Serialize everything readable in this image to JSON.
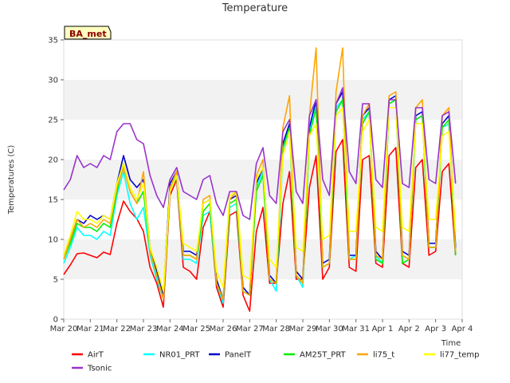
{
  "chart_data": {
    "type": "line",
    "title": "Temperature",
    "xlabel": "Time",
    "ylabel": "Temperatures (C)",
    "badge": "BA_met",
    "ylim": [
      0,
      35
    ],
    "yticks": [
      0,
      5,
      10,
      15,
      20,
      25,
      30,
      35
    ],
    "xlim": [
      "2024-03-20",
      "2024-04-04"
    ],
    "xticks": [
      {
        "date": "2024-03-20",
        "label": "Mar 20"
      },
      {
        "date": "2024-03-21",
        "label": "Mar 21"
      },
      {
        "date": "2024-03-22",
        "label": "Mar 22"
      },
      {
        "date": "2024-03-23",
        "label": "Mar 23"
      },
      {
        "date": "2024-03-24",
        "label": "Mar 24"
      },
      {
        "date": "2024-03-25",
        "label": "Mar 25"
      },
      {
        "date": "2024-03-26",
        "label": "Mar 26"
      },
      {
        "date": "2024-03-27",
        "label": "Mar 27"
      },
      {
        "date": "2024-03-28",
        "label": "Mar 28"
      },
      {
        "date": "2024-03-29",
        "label": "Mar 29"
      },
      {
        "date": "2024-03-30",
        "label": "Mar 30"
      },
      {
        "date": "2024-03-31",
        "label": "Mar 31"
      },
      {
        "date": "2024-04-01",
        "label": "Apr 1"
      },
      {
        "date": "2024-04-02",
        "label": "Apr 2"
      },
      {
        "date": "2024-04-03",
        "label": "Apr 3"
      },
      {
        "date": "2024-04-04",
        "label": "Apr 4"
      }
    ],
    "grid": "horizontal bands",
    "legend_position": "bottom",
    "x": [
      "2024-03-20 00:00",
      "2024-03-20 06:00",
      "2024-03-20 12:00",
      "2024-03-20 18:00",
      "2024-03-21 00:00",
      "2024-03-21 06:00",
      "2024-03-21 12:00",
      "2024-03-21 18:00",
      "2024-03-22 00:00",
      "2024-03-22 06:00",
      "2024-03-22 12:00",
      "2024-03-22 18:00",
      "2024-03-23 00:00",
      "2024-03-23 06:00",
      "2024-03-23 12:00",
      "2024-03-23 18:00",
      "2024-03-24 00:00",
      "2024-03-24 06:00",
      "2024-03-24 12:00",
      "2024-03-24 18:00",
      "2024-03-25 00:00",
      "2024-03-25 06:00",
      "2024-03-25 12:00",
      "2024-03-25 18:00",
      "2024-03-26 00:00",
      "2024-03-26 06:00",
      "2024-03-26 12:00",
      "2024-03-26 18:00",
      "2024-03-27 00:00",
      "2024-03-27 06:00",
      "2024-03-27 12:00",
      "2024-03-27 18:00",
      "2024-03-28 00:00",
      "2024-03-28 06:00",
      "2024-03-28 12:00",
      "2024-03-28 18:00",
      "2024-03-29 00:00",
      "2024-03-29 06:00",
      "2024-03-29 12:00",
      "2024-03-29 18:00",
      "2024-03-30 00:00",
      "2024-03-30 06:00",
      "2024-03-30 12:00",
      "2024-03-30 18:00",
      "2024-03-31 00:00",
      "2024-03-31 06:00",
      "2024-03-31 12:00",
      "2024-03-31 18:00",
      "2024-04-01 00:00",
      "2024-04-01 06:00",
      "2024-04-01 12:00",
      "2024-04-01 18:00",
      "2024-04-02 00:00",
      "2024-04-02 06:00",
      "2024-04-02 12:00",
      "2024-04-02 18:00",
      "2024-04-03 00:00",
      "2024-04-03 06:00",
      "2024-04-03 12:00",
      "2024-04-03 18:00"
    ],
    "series": [
      {
        "name": "AirT",
        "color": "#ff0000",
        "values": [
          5.6,
          6.8,
          8.2,
          8.3,
          8.0,
          7.7,
          8.4,
          8.1,
          12.0,
          14.8,
          13.5,
          12.6,
          11.0,
          6.5,
          4.5,
          1.5,
          15.5,
          17.5,
          6.5,
          6.0,
          5.0,
          11.5,
          13.5,
          4.0,
          1.5,
          13.0,
          13.5,
          3.0,
          1.0,
          11.0,
          14.0,
          4.5,
          4.5,
          14.5,
          18.5,
          5.0,
          5.0,
          16.5,
          20.5,
          5.0,
          6.5,
          21.0,
          22.5,
          6.5,
          6.0,
          20.0,
          20.5,
          7.0,
          6.5,
          20.5,
          21.5,
          7.0,
          6.5,
          19.0,
          20.0,
          8.0,
          8.5,
          18.5,
          19.5,
          8.0
        ]
      },
      {
        "name": "NR01_PRT",
        "color": "#00ffff",
        "values": [
          7.0,
          9.0,
          11.5,
          10.5,
          10.5,
          10.0,
          11.0,
          10.5,
          15.5,
          18.5,
          14.5,
          12.5,
          14.0,
          8.0,
          5.0,
          2.5,
          16.5,
          18.0,
          7.5,
          7.5,
          7.0,
          13.0,
          13.5,
          4.5,
          2.0,
          14.0,
          14.5,
          3.5,
          3.0,
          16.5,
          18.5,
          5.0,
          3.5,
          20.5,
          24.5,
          5.5,
          4.0,
          23.5,
          27.0,
          6.5,
          7.0,
          26.5,
          27.5,
          7.5,
          8.0,
          25.0,
          26.0,
          8.0,
          7.0,
          27.0,
          27.5,
          8.0,
          7.5,
          25.0,
          25.5,
          9.0,
          9.0,
          24.0,
          24.5,
          8.5
        ]
      },
      {
        "name": "PanelT",
        "color": "#0000cc",
        "values": [
          8.0,
          10.0,
          12.5,
          12.0,
          13.0,
          12.5,
          13.0,
          12.5,
          17.0,
          20.5,
          17.5,
          16.5,
          17.5,
          9.0,
          6.0,
          3.0,
          17.0,
          18.5,
          8.5,
          8.5,
          8.0,
          14.5,
          15.0,
          5.0,
          2.5,
          15.0,
          15.5,
          4.0,
          3.0,
          17.0,
          19.0,
          5.5,
          4.5,
          22.0,
          24.5,
          6.0,
          5.0,
          24.0,
          27.5,
          7.0,
          7.5,
          27.0,
          28.5,
          8.0,
          8.0,
          25.5,
          26.5,
          8.5,
          7.5,
          27.5,
          28.0,
          8.5,
          8.0,
          25.5,
          26.0,
          9.5,
          9.5,
          24.5,
          25.5,
          9.0
        ]
      },
      {
        "name": "AM25T_PRT",
        "color": "#00ee00",
        "values": [
          7.5,
          9.5,
          12.0,
          11.5,
          11.5,
          11.0,
          12.0,
          11.5,
          16.0,
          19.5,
          16.0,
          14.5,
          16.0,
          8.5,
          5.5,
          2.5,
          16.0,
          18.0,
          8.0,
          8.0,
          7.5,
          13.5,
          14.5,
          4.5,
          2.5,
          14.5,
          15.0,
          3.5,
          3.0,
          16.0,
          18.0,
          5.0,
          4.5,
          21.5,
          24.0,
          5.5,
          4.5,
          23.0,
          26.5,
          6.5,
          7.0,
          26.0,
          27.5,
          7.5,
          7.5,
          24.5,
          26.0,
          7.5,
          7.0,
          27.0,
          27.5,
          7.0,
          7.5,
          25.0,
          25.5,
          9.0,
          9.0,
          24.0,
          25.0,
          8.0
        ]
      },
      {
        "name": "li75_t",
        "color": "#ffa500",
        "values": [
          7.5,
          10.0,
          12.5,
          11.5,
          12.0,
          11.5,
          12.5,
          12.0,
          16.5,
          19.0,
          16.0,
          14.5,
          18.5,
          8.5,
          5.5,
          2.5,
          16.5,
          18.5,
          8.0,
          8.0,
          7.5,
          15.0,
          15.5,
          4.5,
          2.5,
          15.0,
          16.0,
          3.5,
          3.0,
          18.0,
          20.0,
          5.0,
          4.5,
          24.0,
          28.0,
          5.5,
          4.5,
          25.5,
          34.0,
          6.5,
          7.0,
          28.5,
          34.0,
          7.5,
          7.5,
          25.5,
          27.0,
          8.0,
          7.5,
          28.0,
          28.5,
          8.0,
          7.5,
          26.5,
          27.5,
          9.0,
          9.0,
          25.5,
          26.5,
          8.5
        ]
      },
      {
        "name": "li77_temp",
        "color": "#ffff00",
        "values": [
          8.0,
          10.5,
          13.5,
          12.5,
          12.5,
          12.0,
          13.0,
          12.5,
          17.0,
          19.5,
          16.5,
          15.0,
          17.0,
          9.0,
          6.5,
          3.5,
          16.0,
          18.0,
          9.5,
          9.0,
          8.5,
          14.5,
          15.0,
          6.0,
          4.0,
          15.5,
          16.0,
          5.5,
          5.0,
          17.5,
          19.0,
          7.5,
          6.5,
          20.5,
          23.5,
          9.0,
          8.5,
          23.0,
          24.5,
          10.0,
          10.5,
          25.5,
          26.5,
          11.0,
          11.0,
          23.5,
          25.0,
          11.5,
          11.0,
          26.5,
          26.5,
          11.5,
          11.0,
          24.5,
          24.5,
          12.5,
          12.5,
          23.0,
          23.5,
          11.0
        ]
      },
      {
        "name": "Tsonic",
        "color": "#9932cc",
        "values": [
          16.2,
          17.5,
          20.5,
          19.0,
          19.5,
          19.0,
          20.5,
          20.0,
          23.5,
          24.5,
          24.5,
          22.5,
          22.0,
          18.0,
          15.5,
          14.0,
          17.5,
          19.0,
          16.0,
          15.5,
          15.0,
          17.5,
          18.0,
          14.5,
          13.0,
          16.0,
          16.0,
          13.0,
          12.5,
          19.5,
          21.5,
          15.5,
          14.5,
          23.5,
          25.0,
          16.0,
          14.5,
          25.5,
          27.5,
          17.5,
          15.5,
          27.0,
          29.0,
          18.5,
          17.0,
          27.0,
          27.0,
          17.5,
          16.5,
          27.5,
          27.5,
          17.0,
          16.5,
          26.5,
          26.5,
          17.5,
          17.0,
          25.5,
          26.0,
          17.0
        ]
      }
    ]
  }
}
